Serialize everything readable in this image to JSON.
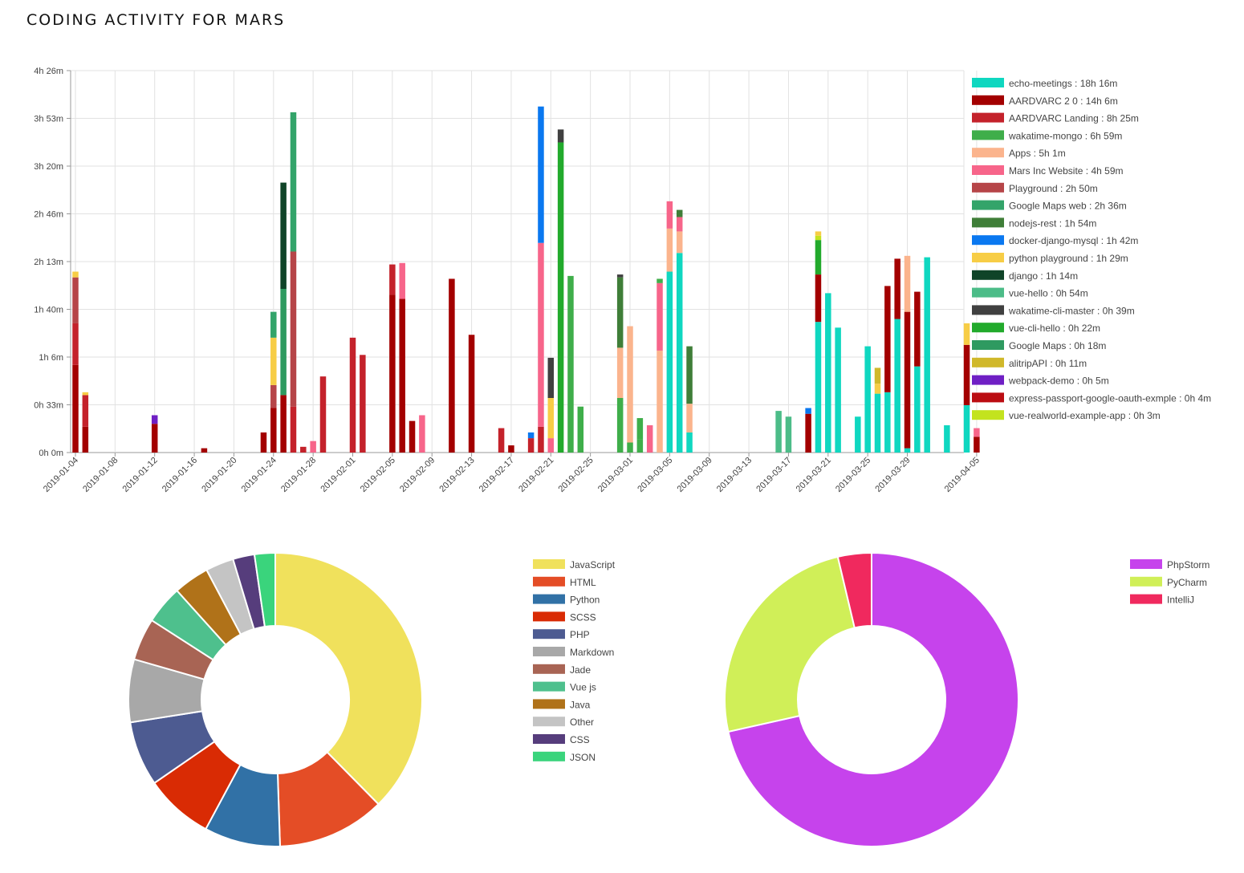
{
  "page": {
    "title": "CODING ACTIVITY FOR MARS"
  },
  "chart_data": [
    {
      "type": "bar",
      "stacked": true,
      "x_ticks": [
        "2019-01-04",
        "2019-01-08",
        "2019-01-12",
        "2019-01-16",
        "2019-01-20",
        "2019-01-24",
        "2019-01-28",
        "2019-02-01",
        "2019-02-05",
        "2019-02-09",
        "2019-02-13",
        "2019-02-17",
        "2019-02-21",
        "2019-02-25",
        "2019-03-01",
        "2019-03-05",
        "2019-03-09",
        "2019-03-13",
        "2019-03-17",
        "2019-03-21",
        "2019-03-25",
        "2019-03-29",
        "2019-04-05"
      ],
      "y_ticks": [
        "0h 0m",
        "0h 33m",
        "1h 6m",
        "1h 40m",
        "2h 13m",
        "2h 46m",
        "3h 20m",
        "3h 53m",
        "4h 26m"
      ],
      "ylim_minutes": [
        0,
        266
      ],
      "grid": true,
      "legend_position": "right",
      "projects": [
        {
          "name": "echo-meetings : 18h 16m",
          "color": "#0fd7c0"
        },
        {
          "name": "AARDVARC 2 0 : 14h 6m",
          "color": "#a30000"
        },
        {
          "name": "AARDVARC Landing : 8h 25m",
          "color": "#c4222b"
        },
        {
          "name": "wakatime-mongo : 6h 59m",
          "color": "#3fae4a"
        },
        {
          "name": "Apps : 5h 1m",
          "color": "#fbb48d"
        },
        {
          "name": "Mars Inc Website : 4h 59m",
          "color": "#f7658a"
        },
        {
          "name": "Playground : 2h 50m",
          "color": "#b64548"
        },
        {
          "name": "Google Maps web : 2h 36m",
          "color": "#33a46a"
        },
        {
          "name": "nodejs-rest : 1h 54m",
          "color": "#3f7e38"
        },
        {
          "name": "docker-django-mysql : 1h 42m",
          "color": "#0a78f0"
        },
        {
          "name": "python playground : 1h 29m",
          "color": "#f7cd46"
        },
        {
          "name": "django : 1h 14m",
          "color": "#0f4428"
        },
        {
          "name": "vue-hello : 0h 54m",
          "color": "#4cbc88"
        },
        {
          "name": "wakatime-cli-master : 0h 39m",
          "color": "#404040"
        },
        {
          "name": "vue-cli-hello : 0h 22m",
          "color": "#22aa2c"
        },
        {
          "name": "Google Maps : 0h 18m",
          "color": "#2e9a60"
        },
        {
          "name": "alitripAPI : 0h 11m",
          "color": "#d0b82a"
        },
        {
          "name": "webpack-demo : 0h 5m",
          "color": "#6f1fc4"
        },
        {
          "name": "express-passport-google-oauth-exmple : 0h 4m",
          "color": "#bb0d12"
        },
        {
          "name": "vue-realworld-example-app : 0h 3m",
          "color": "#c3e31e"
        }
      ],
      "bars": [
        {
          "date": "2019-01-04",
          "segments": [
            [
              1,
              61
            ],
            [
              2,
              29
            ],
            [
              6,
              32
            ],
            [
              10,
              4
            ]
          ]
        },
        {
          "date": "2019-01-05",
          "segments": [
            [
              1,
              18
            ],
            [
              2,
              22
            ],
            [
              10,
              2
            ]
          ]
        },
        {
          "date": "2019-01-12",
          "segments": [
            [
              1,
              20
            ],
            [
              17,
              6
            ]
          ]
        },
        {
          "date": "2019-01-17",
          "segments": [
            [
              1,
              3
            ]
          ]
        },
        {
          "date": "2019-01-23",
          "segments": [
            [
              1,
              14
            ]
          ]
        },
        {
          "date": "2019-01-24",
          "segments": [
            [
              1,
              31
            ],
            [
              6,
              16
            ],
            [
              10,
              33
            ],
            [
              7,
              18
            ]
          ]
        },
        {
          "date": "2019-01-25",
          "segments": [
            [
              1,
              40
            ],
            [
              15,
              74
            ],
            [
              11,
              74
            ]
          ]
        },
        {
          "date": "2019-01-26",
          "segments": [
            [
              2,
              32
            ],
            [
              6,
              108
            ],
            [
              7,
              97
            ]
          ]
        },
        {
          "date": "2019-01-27",
          "segments": [
            [
              2,
              4
            ]
          ]
        },
        {
          "date": "2019-01-28",
          "segments": [
            [
              5,
              8
            ]
          ]
        },
        {
          "date": "2019-01-29",
          "segments": [
            [
              2,
              53
            ]
          ]
        },
        {
          "date": "2019-02-01",
          "segments": [
            [
              2,
              80
            ]
          ]
        },
        {
          "date": "2019-02-02",
          "segments": [
            [
              2,
              68
            ]
          ]
        },
        {
          "date": "2019-02-05",
          "segments": [
            [
              1,
              110
            ],
            [
              2,
              21
            ]
          ]
        },
        {
          "date": "2019-02-06",
          "segments": [
            [
              1,
              107
            ],
            [
              5,
              25
            ]
          ]
        },
        {
          "date": "2019-02-07",
          "segments": [
            [
              1,
              22
            ]
          ]
        },
        {
          "date": "2019-02-08",
          "segments": [
            [
              5,
              26
            ]
          ]
        },
        {
          "date": "2019-02-11",
          "segments": [
            [
              1,
              121
            ]
          ]
        },
        {
          "date": "2019-02-13",
          "segments": [
            [
              1,
              82
            ]
          ]
        },
        {
          "date": "2019-02-16",
          "segments": [
            [
              2,
              17
            ]
          ]
        },
        {
          "date": "2019-02-17",
          "segments": [
            [
              1,
              5
            ]
          ]
        },
        {
          "date": "2019-02-19",
          "segments": [
            [
              2,
              10
            ],
            [
              9,
              4
            ]
          ]
        },
        {
          "date": "2019-02-20",
          "segments": [
            [
              2,
              18
            ],
            [
              5,
              128
            ],
            [
              9,
              95
            ]
          ]
        },
        {
          "date": "2019-02-21",
          "segments": [
            [
              5,
              10
            ],
            [
              10,
              28
            ],
            [
              13,
              28
            ]
          ]
        },
        {
          "date": "2019-02-22",
          "segments": [
            [
              14,
              216
            ],
            [
              13,
              9
            ]
          ]
        },
        {
          "date": "2019-02-23",
          "segments": [
            [
              3,
              123
            ]
          ]
        },
        {
          "date": "2019-02-24",
          "segments": [
            [
              3,
              32
            ]
          ]
        },
        {
          "date": "2019-02-28",
          "segments": [
            [
              3,
              38
            ],
            [
              4,
              35
            ],
            [
              8,
              49
            ],
            [
              13,
              2
            ]
          ]
        },
        {
          "date": "2019-03-01",
          "segments": [
            [
              3,
              7
            ],
            [
              4,
              81
            ]
          ]
        },
        {
          "date": "2019-03-02",
          "segments": [
            [
              3,
              9
            ],
            [
              3,
              15
            ]
          ]
        },
        {
          "date": "2019-03-03",
          "segments": [
            [
              5,
              19
            ]
          ]
        },
        {
          "date": "2019-03-04",
          "segments": [
            [
              4,
              71
            ],
            [
              5,
              47
            ],
            [
              3,
              3
            ]
          ]
        },
        {
          "date": "2019-03-05",
          "segments": [
            [
              0,
              126
            ],
            [
              4,
              30
            ],
            [
              5,
              19
            ]
          ]
        },
        {
          "date": "2019-03-06",
          "segments": [
            [
              0,
              139
            ],
            [
              4,
              15
            ],
            [
              5,
              10
            ],
            [
              8,
              5
            ]
          ]
        },
        {
          "date": "2019-03-07",
          "segments": [
            [
              0,
              14
            ],
            [
              4,
              20
            ],
            [
              8,
              40
            ]
          ]
        },
        {
          "date": "2019-03-16",
          "segments": [
            [
              12,
              29
            ]
          ]
        },
        {
          "date": "2019-03-17",
          "segments": [
            [
              12,
              25
            ]
          ]
        },
        {
          "date": "2019-03-19",
          "segments": [
            [
              1,
              27
            ],
            [
              9,
              4
            ]
          ]
        },
        {
          "date": "2019-03-20",
          "segments": [
            [
              0,
              91
            ],
            [
              1,
              33
            ],
            [
              14,
              24
            ],
            [
              19,
              3
            ],
            [
              10,
              3
            ]
          ]
        },
        {
          "date": "2019-03-21",
          "segments": [
            [
              0,
              111
            ]
          ]
        },
        {
          "date": "2019-03-22",
          "segments": [
            [
              0,
              87
            ]
          ]
        },
        {
          "date": "2019-03-24",
          "segments": [
            [
              0,
              25
            ]
          ]
        },
        {
          "date": "2019-03-25",
          "segments": [
            [
              0,
              74
            ]
          ]
        },
        {
          "date": "2019-03-26",
          "segments": [
            [
              0,
              41
            ],
            [
              10,
              7
            ],
            [
              16,
              11
            ]
          ]
        },
        {
          "date": "2019-03-27",
          "segments": [
            [
              0,
              42
            ],
            [
              1,
              74
            ]
          ]
        },
        {
          "date": "2019-03-28",
          "segments": [
            [
              0,
              93
            ],
            [
              1,
              42
            ]
          ]
        },
        {
          "date": "2019-03-29",
          "segments": [
            [
              0,
              3
            ],
            [
              1,
              95
            ],
            [
              4,
              39
            ]
          ]
        },
        {
          "date": "2019-03-30",
          "segments": [
            [
              0,
              60
            ],
            [
              1,
              52
            ]
          ]
        },
        {
          "date": "2019-03-31",
          "segments": [
            [
              0,
              136
            ]
          ]
        },
        {
          "date": "2019-04-02",
          "segments": [
            [
              0,
              19
            ]
          ]
        },
        {
          "date": "2019-04-04",
          "segments": [
            [
              0,
              33
            ],
            [
              1,
              42
            ],
            [
              10,
              15
            ]
          ]
        },
        {
          "date": "2019-04-05",
          "segments": [
            [
              1,
              11
            ],
            [
              5,
              6
            ]
          ]
        }
      ]
    },
    {
      "type": "pie",
      "donut": true,
      "legend_position": "right",
      "labels": [
        "JavaScript",
        "HTML",
        "Python",
        "SCSS",
        "PHP",
        "Markdown",
        "Jade",
        "Vue js",
        "Java",
        "Other",
        "CSS",
        "JSON"
      ],
      "values": [
        36.4,
        11.5,
        8.1,
        7.3,
        6.9,
        6.7,
        4.5,
        4.1,
        3.8,
        3.0,
        2.3,
        2.2
      ],
      "colors": [
        "#f0e15c",
        "#e44d26",
        "#3171a6",
        "#d92b04",
        "#4d5b91",
        "#a8a8a8",
        "#a86454",
        "#4ec08d",
        "#b07219",
        "#c4c4c4",
        "#563d7c",
        "#3ad47c"
      ]
    },
    {
      "type": "pie",
      "donut": true,
      "legend_position": "right",
      "labels": [
        "PhpStorm",
        "PyCharm",
        "IntelliJ"
      ],
      "values": [
        71.5,
        24.8,
        3.7
      ],
      "colors": [
        "#c643ec",
        "#d0ef58",
        "#f0295e"
      ]
    }
  ]
}
